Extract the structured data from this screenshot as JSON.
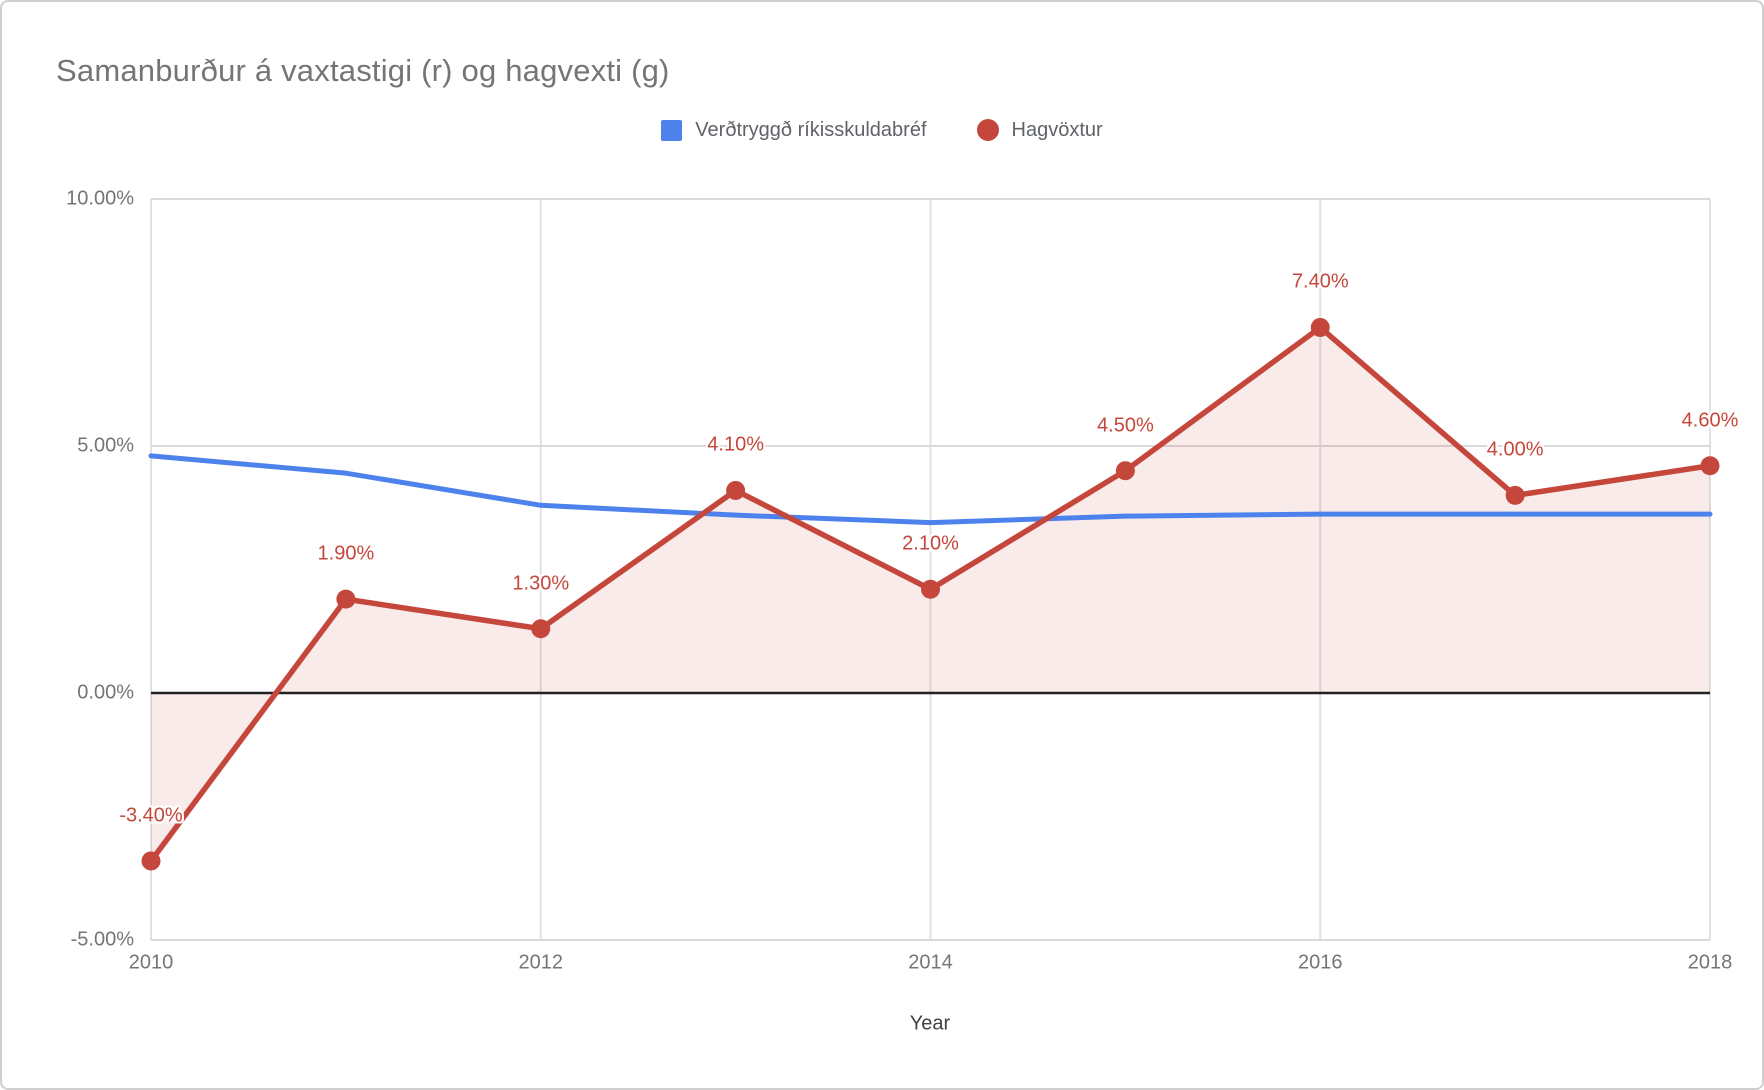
{
  "chart_data": {
    "type": "line",
    "title": "Samanburður á vaxtastigi (r) og hagvexti (g)",
    "x": [
      2010,
      2011,
      2012,
      2013,
      2014,
      2015,
      2016,
      2017,
      2018
    ],
    "x_range": [
      2010,
      2018
    ],
    "y_range": [
      -5,
      10
    ],
    "grid": true,
    "x_axis": {
      "label": "Year",
      "ticks": [
        2010,
        2012,
        2014,
        2016,
        2018
      ],
      "tick_labels": [
        "2010",
        "2012",
        "2014",
        "2016",
        "2018"
      ]
    },
    "y_axis": {
      "ticks": [
        10,
        5,
        0,
        -5
      ],
      "tick_labels": [
        "10.00%",
        "5.00%",
        "0.00%",
        "-5.00%"
      ]
    },
    "zero_line_color": "#212121",
    "legend": {
      "position": "top"
    },
    "series": [
      {
        "name": "Verðtryggð ríkisskuldabréf",
        "type": "line",
        "color": "#4d82ec",
        "values": [
          4.8,
          4.45,
          3.8,
          3.6,
          3.45,
          3.58,
          3.62,
          3.62,
          3.62
        ]
      },
      {
        "name": "Hagvöxtur",
        "type": "line-area",
        "color": "#c5473c",
        "area_fill": "rgba(197,71,60,0.11)",
        "values": [
          -3.4,
          1.9,
          1.3,
          4.1,
          2.1,
          4.5,
          7.4,
          4.0,
          4.6
        ],
        "point_labels": [
          "-3.40%",
          "1.90%",
          "1.30%",
          "4.10%",
          "2.10%",
          "4.50%",
          "7.40%",
          "4.00%",
          "4.60%"
        ]
      }
    ]
  }
}
